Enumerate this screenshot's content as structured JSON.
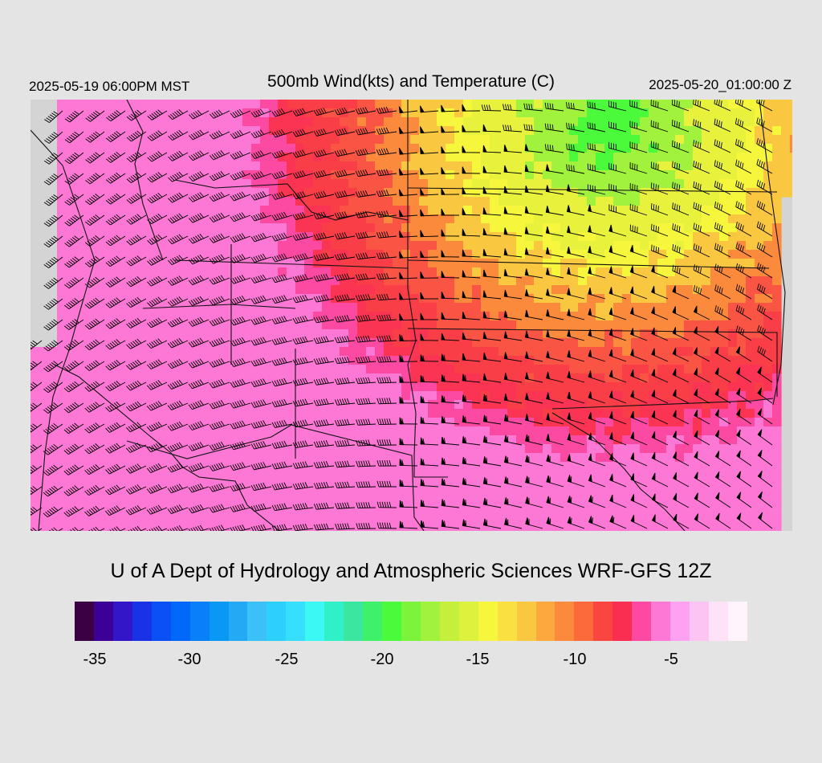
{
  "header": {
    "valid_time": "2025-05-19 06:00PM MST",
    "title": "500mb Wind(kts) and Temperature (C)",
    "utc_time": "2025-05-20_01:00:00 Z"
  },
  "footer": {
    "credit": "U of A Dept of Hydrology and Atmospheric Sciences WRF-GFS 12Z"
  },
  "colorbar": {
    "colors": [
      "#3a0043",
      "#3c0096",
      "#3216c8",
      "#1932e6",
      "#0a50f5",
      "#0068f8",
      "#0a80f8",
      "#0a98f5",
      "#24aaf5",
      "#3cc0f8",
      "#2cd0fa",
      "#36e0fc",
      "#3cf8f4",
      "#30f0c8",
      "#3ae6a0",
      "#3ef06a",
      "#4cfa3c",
      "#7cf43c",
      "#a0f23c",
      "#c4f03c",
      "#dcf23c",
      "#f6f63c",
      "#fae040",
      "#fac840",
      "#fca83c",
      "#fc8a3c",
      "#fc6a3c",
      "#fa4640",
      "#fa2e50",
      "#fc4aa2",
      "#fc78d4",
      "#fca2f0",
      "#fcc4f2",
      "#fde2f8",
      "#fff4fc"
    ],
    "ticks": [
      "-35",
      "-30",
      "-25",
      "-20",
      "-15",
      "-10",
      "-5"
    ]
  },
  "map": {
    "temperature_color_stops": [
      {
        "temp_c": -22,
        "color": "#3aee72"
      },
      {
        "temp_c": -20,
        "color": "#4cfa3c"
      },
      {
        "temp_c": -18,
        "color": "#a0f23c"
      },
      {
        "temp_c": -16,
        "color": "#e8f23c"
      },
      {
        "temp_c": -15,
        "color": "#f6f63c"
      },
      {
        "temp_c": -13.5,
        "color": "#fac840"
      },
      {
        "temp_c": -12,
        "color": "#fc8a3c"
      },
      {
        "temp_c": -10.5,
        "color": "#fa5444"
      },
      {
        "temp_c": -9,
        "color": "#fa3e48"
      },
      {
        "temp_c": -8,
        "color": "#fa3452"
      },
      {
        "temp_c": -7,
        "color": "#fc4aa2"
      },
      {
        "temp_c": -6,
        "color": "#fc78d4"
      }
    ],
    "wind_field": "southwesterly in the west, westerly to northwesterly in the east"
  }
}
